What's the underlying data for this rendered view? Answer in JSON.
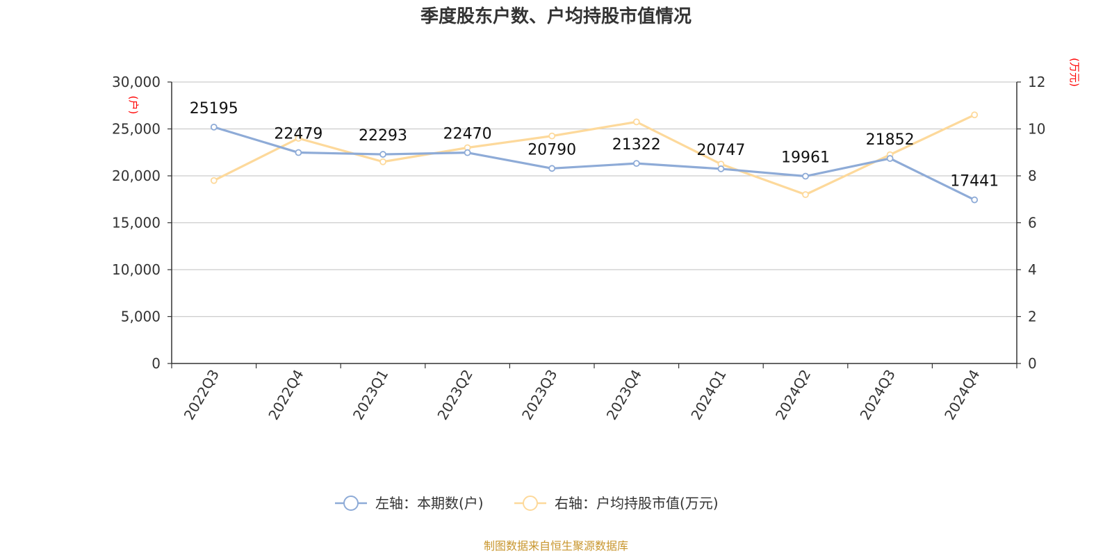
{
  "chart_data": {
    "type": "line",
    "title": "季度股东户数、户均持股市值情况",
    "categories": [
      "2022Q3",
      "2022Q4",
      "2023Q1",
      "2023Q2",
      "2023Q3",
      "2023Q4",
      "2024Q1",
      "2024Q2",
      "2024Q3",
      "2024Q4"
    ],
    "y_left": {
      "unit": "(户)",
      "ylim": [
        0,
        30000
      ],
      "ticks": [
        "0",
        "5,000",
        "10,000",
        "15,000",
        "20,000",
        "25,000",
        "30,000"
      ]
    },
    "y_right": {
      "unit": "(万元)",
      "ylim": [
        0,
        12
      ],
      "ticks": [
        "0",
        "2",
        "4",
        "6",
        "8",
        "10",
        "12"
      ]
    },
    "series": [
      {
        "name": "左轴：本期数(户)",
        "axis": "left",
        "color": "#8eabd7",
        "values": [
          25195,
          22479,
          22293,
          22470,
          20790,
          21322,
          20747,
          19961,
          21852,
          17441
        ],
        "labels": [
          "25195",
          "22479",
          "22293",
          "22470",
          "20790",
          "21322",
          "20747",
          "19961",
          "21852",
          "17441"
        ]
      },
      {
        "name": "右轴：户均持股市值(万元)",
        "axis": "right",
        "color": "#fdd99b",
        "values": [
          7.8,
          9.6,
          8.6,
          9.2,
          9.7,
          10.3,
          8.5,
          7.2,
          8.9,
          10.6
        ]
      }
    ],
    "grid": true,
    "legend": "bottom-center"
  },
  "source": "制图数据来自恒生聚源数据库"
}
